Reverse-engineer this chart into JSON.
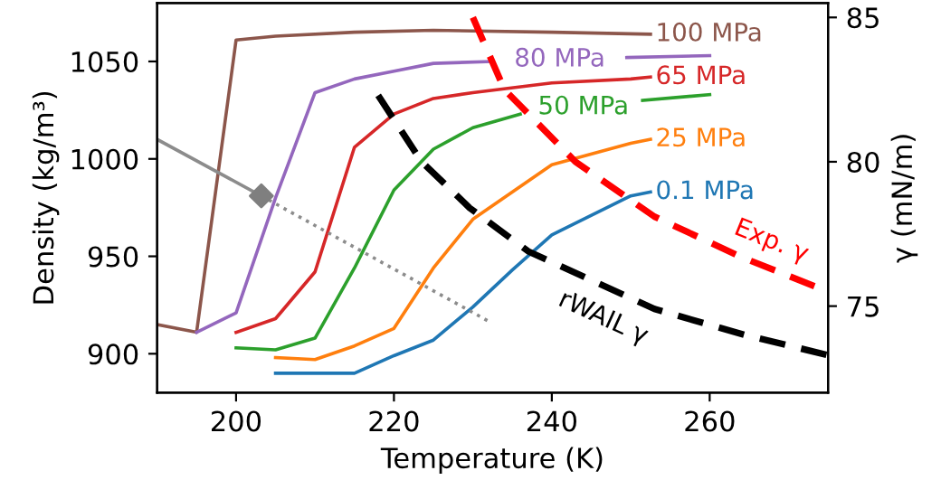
{
  "chart_data": {
    "type": "line",
    "xlabel": "Temperature (K)",
    "ylabel": "Density (kg/m³)",
    "y2label": "γ (mN/m)",
    "xlim": [
      190,
      275
    ],
    "xticks": [
      200,
      220,
      240,
      260
    ],
    "ylim": [
      880,
      1080
    ],
    "yticks": [
      900,
      950,
      1000,
      1050
    ],
    "y2lim": [
      72,
      85.5
    ],
    "y2ticks": [
      75,
      80,
      85
    ],
    "grid": false,
    "legend": false,
    "series": [
      {
        "name": "100 MPa",
        "color": "#8c564b",
        "x": [
          190,
          195,
          200,
          205,
          215,
          225,
          240,
          252.5
        ],
        "values": [
          915,
          911,
          1061,
          1063,
          1065,
          1066,
          1065,
          1064
        ]
      },
      {
        "name": "80 MPa",
        "color": "#9467bd",
        "x": [
          195,
          200,
          205,
          210,
          215,
          220,
          225,
          232.5,
          241,
          249.5,
          260
        ],
        "values": [
          911,
          921,
          980,
          1034,
          1041,
          1045,
          1049,
          1050,
          null,
          1052,
          1053
        ]
      },
      {
        "name": "65 MPa",
        "color": "#d62728",
        "x": [
          200,
          205,
          210,
          215,
          220,
          225,
          230,
          240,
          250,
          252.5
        ],
        "values": [
          911,
          918,
          942,
          1006,
          1023,
          1031,
          1034,
          1039,
          1041,
          1042
        ]
      },
      {
        "name": "50 MPa",
        "color": "#2ca02c",
        "x": [
          200,
          205,
          210,
          215,
          220,
          225,
          230,
          236,
          244,
          251.5,
          260
        ],
        "values": [
          903,
          902,
          908,
          944,
          984,
          1005,
          1016,
          1023,
          null,
          1030,
          1033
        ]
      },
      {
        "name": "25 MPa",
        "color": "#ff7f0e",
        "x": [
          205,
          210,
          215,
          220,
          225,
          230,
          240,
          250,
          252.5
        ],
        "values": [
          898,
          897,
          904,
          913,
          944,
          969,
          997,
          1008,
          1010
        ]
      },
      {
        "name": "0.1 MPa",
        "color": "#1f77b4",
        "x": [
          205,
          210,
          215,
          220,
          225,
          230,
          235,
          240,
          250,
          252.5
        ],
        "values": [
          890,
          890,
          890,
          899,
          907,
          924,
          943,
          961,
          981,
          983
        ]
      },
      {
        "color": "#8c8c8c",
        "line_style": "solid",
        "x": [
          190,
          203.2
        ],
        "values": [
          1010,
          981
        ]
      },
      {
        "color": "#8c8c8c",
        "line_style": "dotted",
        "x": [
          203.2,
          232.3
        ],
        "values": [
          981,
          916
        ]
      },
      {
        "type": "scatter",
        "color": "#7f7f7f",
        "marker": "diamond",
        "x": [
          203.2
        ],
        "values": [
          981
        ]
      },
      {
        "name": "rWAIL γ",
        "color": "#000000",
        "line_style": "dashed",
        "axis": "y2",
        "x": [
          218,
          223.5,
          229.6,
          237,
          253,
          264.5,
          275
        ],
        "values": [
          82.3,
          80.0,
          78.4,
          76.9,
          74.9,
          74.0,
          73.3
        ]
      },
      {
        "name": "Exp. γ",
        "color": "#ff0000",
        "line_style": "dashed",
        "axis": "y2",
        "x": [
          230,
          234,
          243,
          253,
          264,
          275
        ],
        "values": [
          85.0,
          82.5,
          80.0,
          78.1,
          76.7,
          75.5
        ]
      }
    ]
  }
}
